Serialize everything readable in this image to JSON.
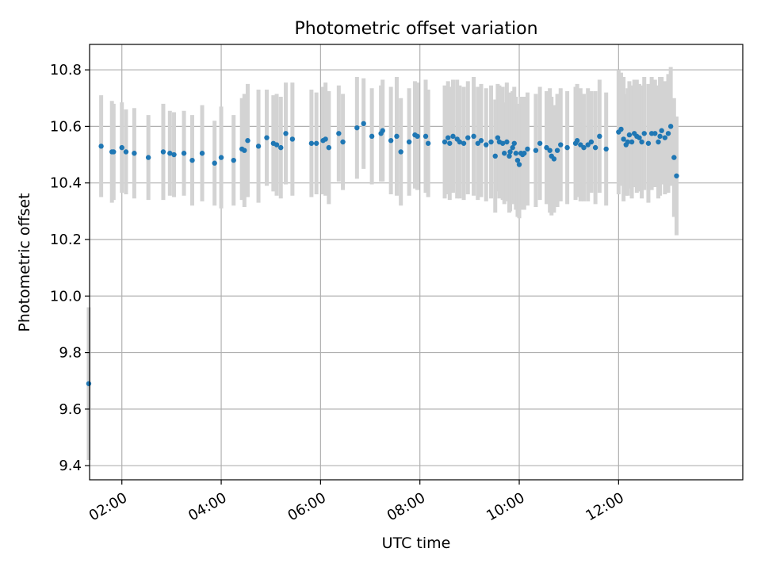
{
  "chart_data": {
    "type": "scatter",
    "title": "Photometric offset variation",
    "xlabel": "UTC time",
    "ylabel": "Photometric offset",
    "x_ticks": [
      "02:00",
      "04:00",
      "06:00",
      "08:00",
      "10:00",
      "12:00"
    ],
    "y_ticks": [
      "9.4",
      "9.6",
      "9.8",
      "10.0",
      "10.2",
      "10.4",
      "10.6",
      "10.8"
    ],
    "xlim": [
      "01:21",
      "14:30"
    ],
    "ylim": [
      9.35,
      10.89
    ],
    "grid": true,
    "colors": {
      "points": "#1f77b4",
      "error_bars": "#d3d3d3",
      "grid": "#b0b0b0"
    },
    "series": [
      {
        "x": [
          "01:20",
          "01:35",
          "01:48",
          "01:50",
          "02:00",
          "02:05",
          "02:15",
          "02:32",
          "02:50",
          "02:58",
          "03:03",
          "03:15",
          "03:25",
          "03:37",
          "03:52",
          "04:00",
          "04:15",
          "04:25",
          "04:28",
          "04:32",
          "04:45",
          "04:55",
          "05:03",
          "05:07",
          "05:12",
          "05:18",
          "05:26",
          "05:49",
          "05:55",
          "06:03",
          "06:06",
          "06:10",
          "06:22",
          "06:27",
          "06:44",
          "06:52",
          "07:02",
          "07:13",
          "07:15",
          "07:25",
          "07:32",
          "07:37",
          "07:47",
          "07:54",
          "07:57",
          "08:07",
          "08:10",
          "08:30",
          "08:34",
          "08:36",
          "08:40",
          "08:45",
          "08:48",
          "08:53",
          "08:58",
          "09:05",
          "09:10",
          "09:14",
          "09:20",
          "09:26",
          "09:31",
          "09:34",
          "09:36",
          "09:40",
          "09:42",
          "09:45",
          "09:48",
          "09:49",
          "09:52",
          "09:54",
          "09:56",
          "09:58",
          "10:00",
          "10:02",
          "10:04",
          "10:06",
          "10:10",
          "10:20",
          "10:25",
          "10:33",
          "10:37",
          "10:39",
          "10:42",
          "10:46",
          "10:50",
          "10:58",
          "11:08",
          "11:10",
          "11:14",
          "11:18",
          "11:23",
          "11:27",
          "11:32",
          "11:37",
          "11:45",
          "12:00",
          "12:03",
          "12:06",
          "12:09",
          "12:11",
          "12:13",
          "12:16",
          "12:19",
          "12:22",
          "12:25",
          "12:28",
          "12:31",
          "12:36",
          "12:40",
          "12:44",
          "12:48",
          "12:50",
          "12:52",
          "12:56",
          "13:00",
          "13:03",
          "13:07",
          "13:10"
        ],
        "y": [
          9.69,
          10.53,
          10.51,
          10.51,
          10.525,
          10.51,
          10.505,
          10.49,
          10.51,
          10.505,
          10.5,
          10.505,
          10.48,
          10.505,
          10.47,
          10.49,
          10.48,
          10.52,
          10.515,
          10.55,
          10.53,
          10.56,
          10.54,
          10.535,
          10.525,
          10.575,
          10.555,
          10.54,
          10.54,
          10.55,
          10.555,
          10.525,
          10.575,
          10.545,
          10.595,
          10.61,
          10.565,
          10.575,
          10.585,
          10.55,
          10.565,
          10.51,
          10.545,
          10.57,
          10.565,
          10.565,
          10.54,
          10.545,
          10.56,
          10.54,
          10.565,
          10.555,
          10.545,
          10.54,
          10.56,
          10.565,
          10.54,
          10.55,
          10.535,
          10.545,
          10.495,
          10.56,
          10.545,
          10.54,
          10.505,
          10.545,
          10.495,
          10.51,
          10.525,
          10.54,
          10.505,
          10.48,
          10.465,
          10.505,
          10.5,
          10.505,
          10.52,
          10.515,
          10.54,
          10.525,
          10.515,
          10.495,
          10.485,
          10.515,
          10.535,
          10.525,
          10.54,
          10.55,
          10.535,
          10.525,
          10.535,
          10.545,
          10.525,
          10.565,
          10.52,
          10.58,
          10.59,
          10.555,
          10.535,
          10.545,
          10.57,
          10.545,
          10.575,
          10.565,
          10.56,
          10.545,
          10.575,
          10.54,
          10.575,
          10.575,
          10.545,
          10.565,
          10.585,
          10.56,
          10.575,
          10.6,
          10.49,
          10.425
        ],
        "err": [
          0.27,
          0.18,
          0.18,
          0.17,
          0.16,
          0.15,
          0.16,
          0.15,
          0.17,
          0.15,
          0.15,
          0.15,
          0.16,
          0.17,
          0.15,
          0.18,
          0.16,
          0.18,
          0.2,
          0.2,
          0.2,
          0.17,
          0.17,
          0.18,
          0.18,
          0.18,
          0.2,
          0.19,
          0.18,
          0.19,
          0.2,
          0.2,
          0.17,
          0.17,
          0.18,
          0.16,
          0.17,
          0.17,
          0.18,
          0.19,
          0.21,
          0.19,
          0.19,
          0.19,
          0.19,
          0.2,
          0.19,
          0.2,
          0.2,
          0.2,
          0.2,
          0.21,
          0.2,
          0.2,
          0.2,
          0.21,
          0.2,
          0.2,
          0.2,
          0.2,
          0.2,
          0.19,
          0.2,
          0.2,
          0.18,
          0.21,
          0.2,
          0.21,
          0.2,
          0.2,
          0.2,
          0.2,
          0.19,
          0.2,
          0.18,
          0.2,
          0.2,
          0.2,
          0.2,
          0.2,
          0.22,
          0.21,
          0.19,
          0.2,
          0.2,
          0.2,
          0.2,
          0.2,
          0.2,
          0.19,
          0.2,
          0.18,
          0.2,
          0.2,
          0.2,
          0.22,
          0.2,
          0.22,
          0.18,
          0.19,
          0.19,
          0.2,
          0.19,
          0.2,
          0.19,
          0.2,
          0.2,
          0.21,
          0.2,
          0.19,
          0.2,
          0.21,
          0.19,
          0.2,
          0.21,
          0.21,
          0.21,
          0.21
        ]
      }
    ]
  }
}
